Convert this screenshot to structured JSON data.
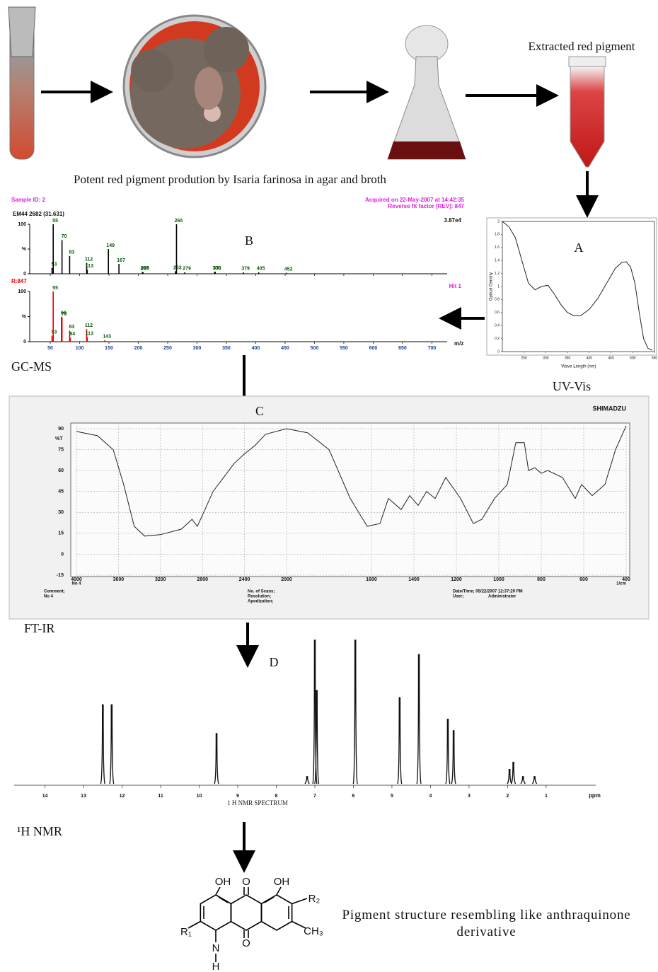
{
  "photos": {
    "caption": "Potent red pigment prodution by Isaria farinosa in agar and broth",
    "extract_label": "Extracted red pigment"
  },
  "panel_labels": {
    "a": "A",
    "b": "B",
    "c": "C",
    "d": "D"
  },
  "uv_vis": {
    "label": "UV-Vis",
    "y_axis_label": "Optical Density",
    "x_axis_label": "Wave Length (nm)",
    "xlim": [
      200,
      550
    ],
    "ylim": [
      0,
      2
    ],
    "xticks": [
      250,
      300,
      350,
      400,
      450,
      500,
      550
    ],
    "yticks": [
      0,
      0.2,
      0.4,
      0.6,
      0.8,
      1,
      1.2,
      1.4,
      1.6,
      1.8,
      2
    ],
    "x": [
      200,
      215,
      230,
      245,
      260,
      275,
      290,
      305,
      320,
      335,
      350,
      365,
      380,
      400,
      420,
      440,
      460,
      475,
      485,
      495,
      505,
      515,
      525,
      535,
      545
    ],
    "y": [
      2.0,
      1.92,
      1.75,
      1.4,
      1.05,
      0.95,
      1.0,
      1.02,
      0.88,
      0.72,
      0.6,
      0.55,
      0.55,
      0.65,
      0.82,
      1.05,
      1.28,
      1.37,
      1.38,
      1.3,
      1.05,
      0.6,
      0.2,
      0.05,
      0.02
    ]
  },
  "gc_ms": {
    "label": "GC-MS",
    "sample_id": "Sample ID: 2",
    "acquired": "Acquired on 22-May-2007 at 14:42:35",
    "reverse_fit": "Reverse fit factor [REV]: 847",
    "scan": "EM44 2682 (31.631)",
    "max_intensity": "3.87e4",
    "hit_name": "R:847",
    "hit": "Hit 1",
    "x_axis_label": "m/z",
    "xlim": [
      15,
      726
    ],
    "ylim": [
      0,
      100
    ],
    "xticks": [
      50,
      100,
      150,
      200,
      250,
      300,
      350,
      400,
      450,
      500,
      550,
      600,
      650,
      700
    ],
    "yticks": [
      0,
      {
        "value": 50,
        "label": "%"
      },
      100
    ],
    "sample": {
      "mz": [
        53,
        55,
        70,
        83,
        112,
        113,
        149,
        167,
        207,
        208,
        263,
        265,
        279,
        330,
        331,
        379,
        405,
        452
      ],
      "intensity": [
        12,
        100,
        68,
        36,
        22,
        8,
        50,
        20,
        4,
        3,
        5,
        100,
        3,
        4,
        4,
        3,
        3,
        2
      ]
    },
    "library": {
      "mz": [
        53,
        55,
        69,
        70,
        83,
        84,
        112,
        113,
        143
      ],
      "intensity": [
        12,
        100,
        50,
        48,
        22,
        8,
        25,
        9,
        3
      ]
    }
  },
  "ft_ir": {
    "label": "FT-IR",
    "brand": "SHIMADZU",
    "y_axis_label": "%T",
    "x_unit": "1/cm",
    "sample": "No 4",
    "comment": "Comment;",
    "comment_value": "No 4",
    "scans": "No. of Scans;",
    "resolution": "Resolution;",
    "apodization": "Apodization;",
    "datetime": "Date/Time; 05/22/2007 12:37:29 PM",
    "user": "User;",
    "user_value": "Administrator",
    "xlim": [
      4000,
      400
    ],
    "scale_break": 2000,
    "ylim": [
      -15,
      90
    ],
    "grid": true,
    "xticks": [
      4000,
      3600,
      3200,
      2800,
      2400,
      2000,
      1600,
      1400,
      1200,
      1000,
      800,
      600,
      400
    ],
    "yticks": [
      90,
      75,
      60,
      45,
      30,
      15,
      0,
      -15
    ],
    "x": [
      4000,
      3800,
      3650,
      3550,
      3450,
      3350,
      3200,
      3000,
      2900,
      2850,
      2800,
      2700,
      2500,
      2400,
      2300,
      2200,
      2000,
      1900,
      1800,
      1700,
      1620,
      1560,
      1520,
      1460,
      1420,
      1380,
      1340,
      1300,
      1250,
      1180,
      1120,
      1080,
      1020,
      960,
      920,
      880,
      860,
      830,
      800,
      770,
      700,
      640,
      610,
      560,
      500,
      450,
      400
    ],
    "y": [
      88,
      85,
      75,
      50,
      20,
      13,
      14,
      18,
      25,
      20,
      28,
      45,
      65,
      72,
      78,
      86,
      90,
      87,
      75,
      40,
      20,
      22,
      40,
      32,
      42,
      35,
      45,
      40,
      55,
      40,
      22,
      25,
      40,
      50,
      80,
      80,
      60,
      62,
      58,
      60,
      55,
      40,
      50,
      42,
      50,
      75,
      92
    ]
  },
  "nmr": {
    "label": "¹H NMR",
    "spectrum_label": "1 H NMR SPECTRUM",
    "x_unit": "ppm",
    "xlim": [
      14.8,
      -0.25
    ],
    "ylim": [
      0,
      1
    ],
    "xticks": [
      14,
      13,
      12,
      11,
      10,
      9,
      8,
      7,
      6,
      5,
      4,
      3,
      2,
      1
    ],
    "peaks_ppm": [
      12.5,
      12.27,
      9.55,
      7.2,
      7.0,
      6.95,
      5.95,
      4.8,
      4.3,
      3.55,
      3.4,
      1.95,
      1.85,
      1.6,
      1.3
    ],
    "peaks_height": [
      0.55,
      0.55,
      0.35,
      0.05,
      1.0,
      0.65,
      1.0,
      0.6,
      0.9,
      0.45,
      0.37,
      0.1,
      0.15,
      0.05,
      0.05
    ]
  },
  "structure": {
    "oh_left": "OH",
    "oh_right": "OH",
    "carbonyl_top": "O",
    "carbonyl_bottom": "O",
    "r1": "R₁",
    "r2": "R₂",
    "methyl": "CH₃",
    "nitrogen": "N",
    "hydrogen": "H",
    "note": "Pigment structure resembling like anthraquinone derivative"
  }
}
